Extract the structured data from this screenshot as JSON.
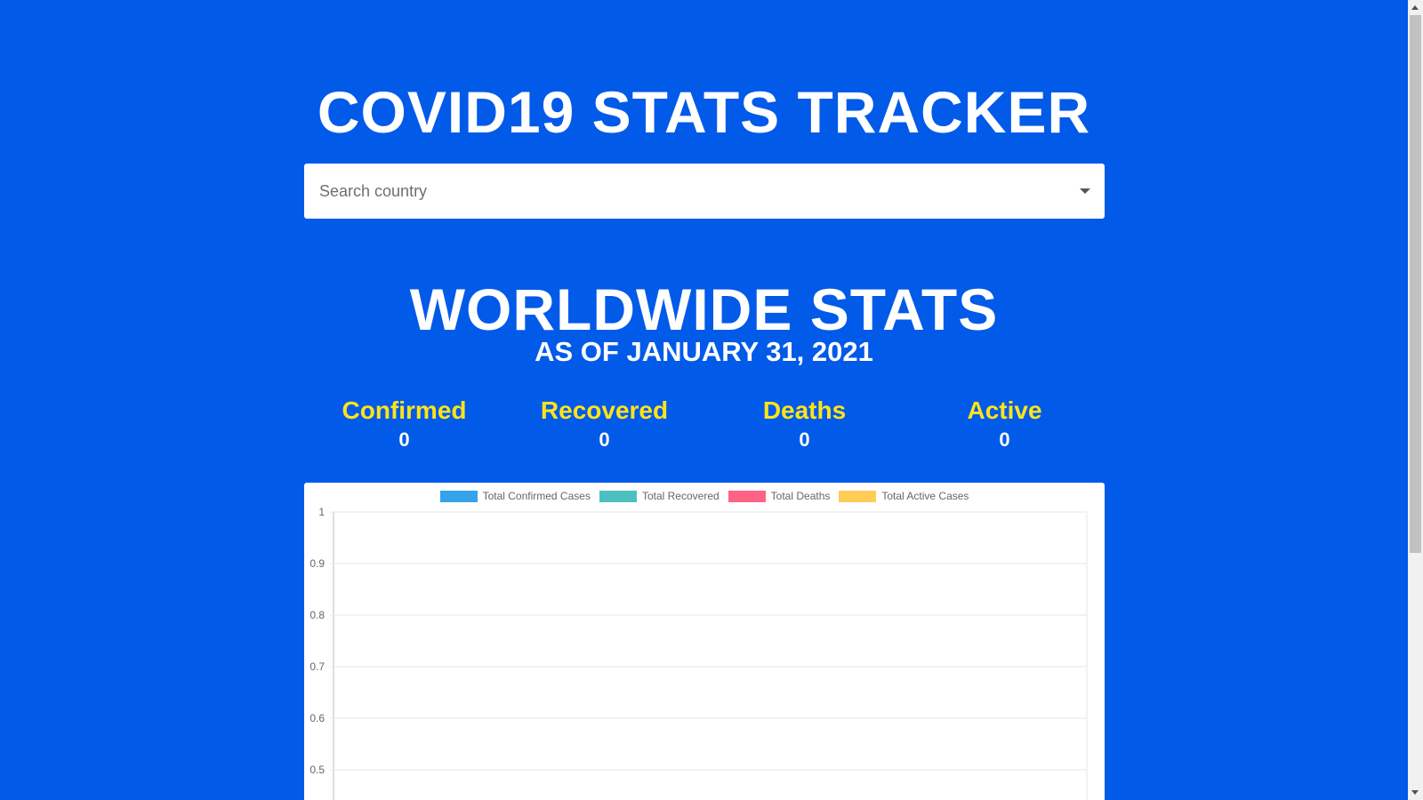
{
  "header": {
    "title": "COVID19 STATS TRACKER"
  },
  "search": {
    "placeholder": "Search country"
  },
  "worldwide": {
    "title": "WORLDWIDE STATS",
    "subtitle": "AS OF JANUARY 31, 2021"
  },
  "stats": [
    {
      "label": "Confirmed",
      "value": "0"
    },
    {
      "label": "Recovered",
      "value": "0"
    },
    {
      "label": "Deaths",
      "value": "0"
    },
    {
      "label": "Active",
      "value": "0"
    }
  ],
  "colors": {
    "background": "#025AE9",
    "stat_label": "#FFE41A",
    "confirmed": "#36A2EB",
    "recovered": "#4BC0C0",
    "deaths": "#FF6384",
    "active": "#FFCD56"
  },
  "chart_data": {
    "type": "bar",
    "categories": [],
    "series": [
      {
        "name": "Total Confirmed Cases",
        "values": []
      },
      {
        "name": "Total Recovered",
        "values": []
      },
      {
        "name": "Total Deaths",
        "values": []
      },
      {
        "name": "Total Active Cases",
        "values": []
      }
    ],
    "y_ticks": [
      "1",
      "0.9",
      "0.8",
      "0.7",
      "0.6",
      "0.5"
    ],
    "ylim": [
      0,
      1
    ],
    "grid": true,
    "legend_position": "top"
  }
}
